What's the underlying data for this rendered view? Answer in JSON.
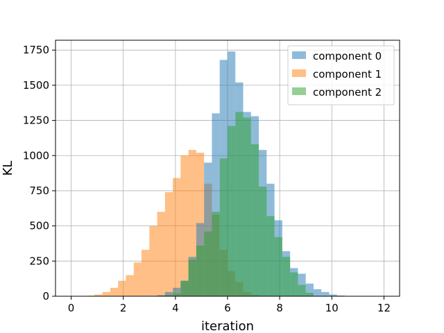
{
  "chart_data": {
    "type": "bar",
    "title": "",
    "xlabel": "iteration",
    "ylabel": "KL",
    "xlim": [
      -0.6,
      12.6
    ],
    "ylim": [
      0,
      1820
    ],
    "xticks": [
      "0",
      "2",
      "4",
      "6",
      "8",
      "10",
      "12"
    ],
    "yticks": [
      "0",
      "250",
      "500",
      "750",
      "1000",
      "1250",
      "1500",
      "1750"
    ],
    "grid": true,
    "legend_position": "top-right",
    "series": [
      {
        "name": "component 1",
        "color": "#ff7f0e",
        "opacity": 0.5,
        "bin_edges": [
          0.6,
          0.9,
          1.2,
          1.5,
          1.8,
          2.1,
          2.4,
          2.7,
          3.0,
          3.3,
          3.6,
          3.9,
          4.2,
          4.5,
          4.8,
          5.1,
          5.4,
          5.7,
          6.0,
          6.3,
          6.6,
          6.9,
          7.2,
          7.5
        ],
        "counts": [
          4,
          12,
          30,
          60,
          110,
          150,
          240,
          330,
          500,
          600,
          740,
          840,
          1000,
          1040,
          1020,
          800,
          580,
          330,
          180,
          100,
          30,
          10,
          3
        ]
      },
      {
        "name": "component 0",
        "color": "#1f77b4",
        "opacity": 0.5,
        "bin_edges": [
          3.0,
          3.3,
          3.6,
          3.9,
          4.2,
          4.5,
          4.8,
          5.1,
          5.4,
          5.7,
          6.0,
          6.3,
          6.6,
          6.9,
          7.2,
          7.5,
          7.8,
          8.1,
          8.4,
          8.7,
          9.0,
          9.3,
          9.6,
          9.9,
          10.2,
          10.5
        ],
        "counts": [
          2,
          8,
          30,
          60,
          110,
          280,
          520,
          950,
          1300,
          1680,
          1740,
          1520,
          1310,
          1280,
          1040,
          800,
          540,
          320,
          200,
          160,
          90,
          50,
          30,
          12,
          5
        ]
      },
      {
        "name": "component 2",
        "color": "#2ca02c",
        "opacity": 0.5,
        "bin_edges": [
          3.6,
          3.9,
          4.2,
          4.5,
          4.8,
          5.1,
          5.4,
          5.7,
          6.0,
          6.3,
          6.6,
          6.9,
          7.2,
          7.5,
          7.8,
          8.1,
          8.4,
          8.7,
          9.0,
          9.3
        ],
        "counts": [
          8,
          20,
          110,
          260,
          360,
          460,
          600,
          980,
          1210,
          1310,
          1270,
          1080,
          780,
          570,
          420,
          280,
          170,
          80,
          25
        ]
      }
    ],
    "legend_order": [
      "component 0",
      "component 1",
      "component 2"
    ]
  }
}
